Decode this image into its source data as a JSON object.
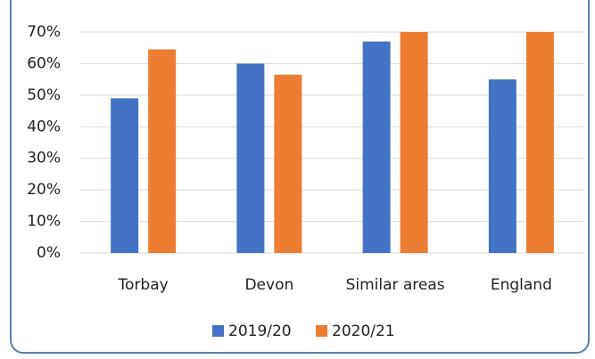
{
  "chart_data": {
    "type": "bar",
    "categories": [
      "Torbay",
      "Devon",
      "Similar areas",
      "England"
    ],
    "series": [
      {
        "name": "2019/20",
        "color": "#4472c4",
        "values": [
          49,
          60,
          67,
          55
        ]
      },
      {
        "name": "2020/21",
        "color": "#ed7d31",
        "values": [
          64.5,
          56.5,
          70,
          70
        ]
      }
    ],
    "ylim": [
      0,
      70
    ],
    "yticks": [
      {
        "value": 0,
        "label": "0%"
      },
      {
        "value": 10,
        "label": "10%"
      },
      {
        "value": 20,
        "label": "20%"
      },
      {
        "value": 30,
        "label": "30%"
      },
      {
        "value": 40,
        "label": "40%"
      },
      {
        "value": 50,
        "label": "50%"
      },
      {
        "value": 60,
        "label": "60%"
      },
      {
        "value": 70,
        "label": "70%"
      }
    ],
    "grid": true,
    "legend": "bottom"
  }
}
